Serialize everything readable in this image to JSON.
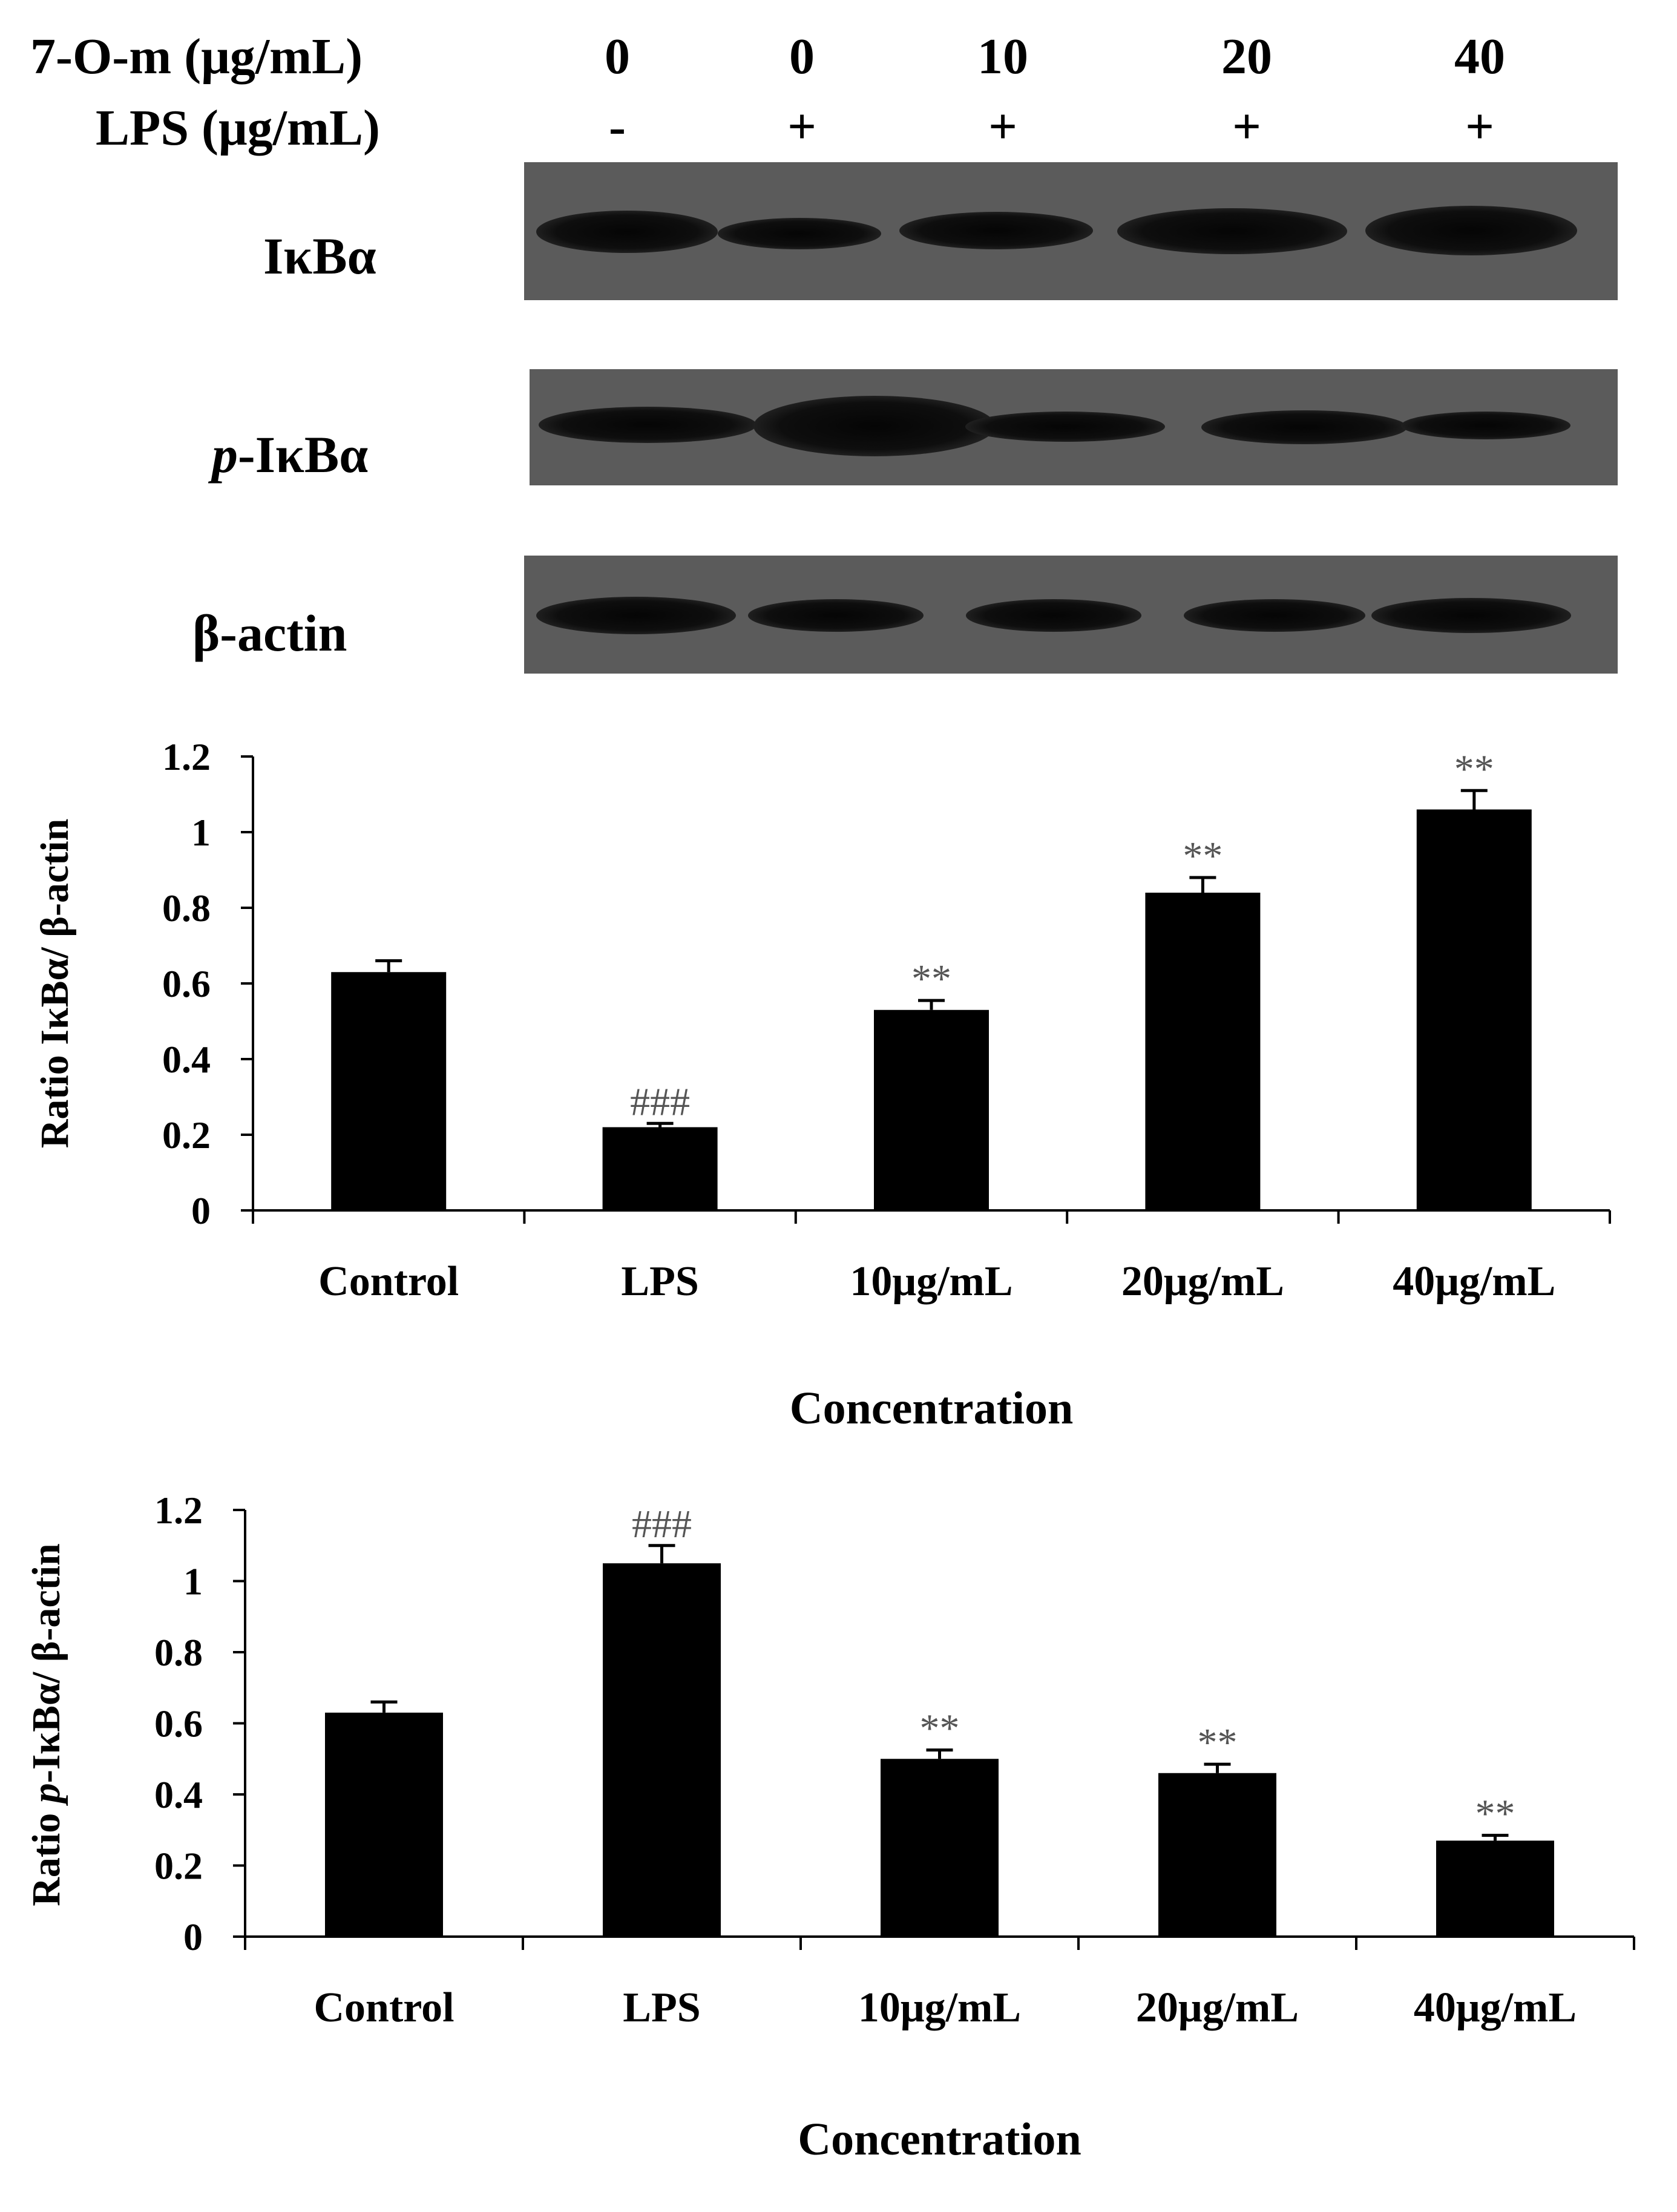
{
  "header": {
    "row1_label": "7-O-m (μg/mL)",
    "row1_values": [
      "0",
      "0",
      "10",
      "20",
      "40"
    ],
    "row2_label": "LPS (μg/mL)",
    "row2_values": [
      "-",
      "+",
      "+",
      "+",
      "+"
    ]
  },
  "blots": [
    {
      "label": "IκBα",
      "label_prefix": "",
      "intensity": [
        0.85,
        0.55,
        0.75,
        0.9,
        0.95
      ]
    },
    {
      "label": "-IκBα",
      "label_prefix": "p",
      "intensity": [
        0.75,
        1.0,
        0.6,
        0.7,
        0.5
      ]
    },
    {
      "label": "β-actin",
      "label_prefix": "",
      "intensity": [
        0.85,
        0.75,
        0.78,
        0.78,
        0.8
      ]
    }
  ],
  "chart_data": [
    {
      "type": "bar",
      "categories": [
        "Control",
        "LPS",
        "10μg/mL",
        "20μg/mL",
        "40μg/mL"
      ],
      "values": [
        0.63,
        0.22,
        0.53,
        0.84,
        1.06
      ],
      "errors": [
        0.03,
        0.01,
        0.025,
        0.04,
        0.05
      ],
      "annotations": [
        "",
        "###",
        "**",
        "**",
        "**"
      ],
      "ylabel": "Ratio IκBα/ β-actin",
      "ylabel_prefix": "",
      "xlabel": "Concentration",
      "ylim": [
        0,
        1.2
      ],
      "yticks": [
        "0",
        "0.2",
        "0.4",
        "0.6",
        "0.8",
        "1",
        "1.2"
      ],
      "bar_color": "#000000",
      "annotation_color": "#555555"
    },
    {
      "type": "bar",
      "categories": [
        "Control",
        "LPS",
        "10μg/mL",
        "20μg/mL",
        "40μg/mL"
      ],
      "values": [
        0.63,
        1.05,
        0.5,
        0.46,
        0.27
      ],
      "errors": [
        0.03,
        0.05,
        0.025,
        0.025,
        0.015
      ],
      "annotations": [
        "",
        "###",
        "**",
        "**",
        "**"
      ],
      "ylabel": "-IκBα/ β-actin",
      "ylabel_prefix": "Ratio p",
      "xlabel": "Concentration",
      "ylim": [
        0,
        1.2
      ],
      "yticks": [
        "0",
        "0.2",
        "0.4",
        "0.6",
        "0.8",
        "1",
        "1.2"
      ],
      "bar_color": "#000000",
      "annotation_color": "#555555"
    }
  ]
}
